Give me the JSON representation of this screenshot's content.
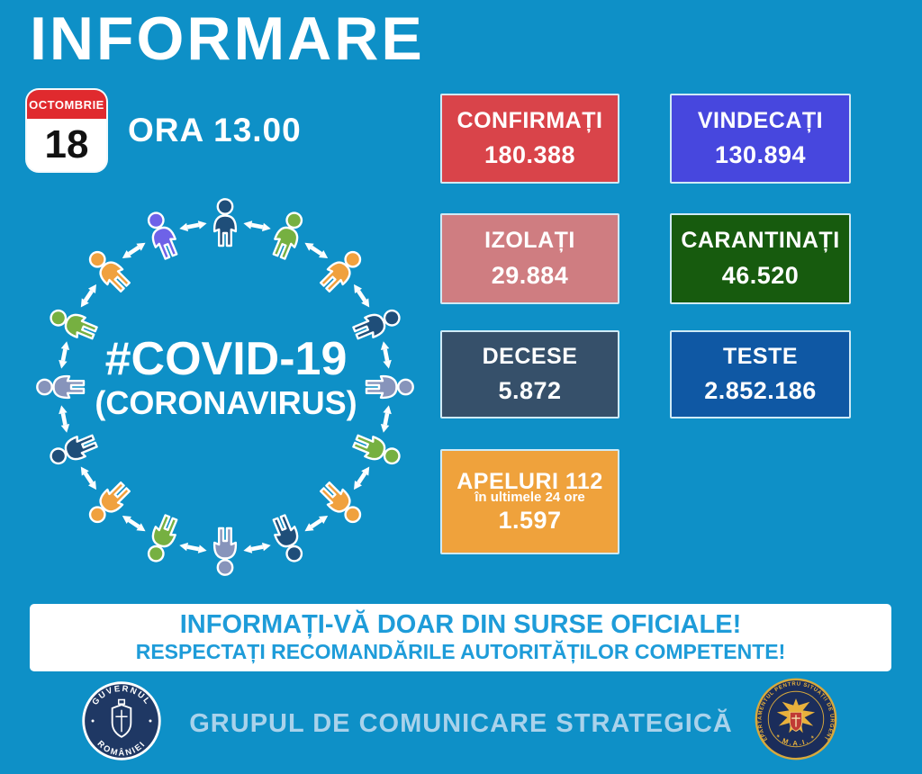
{
  "title": "INFORMARE",
  "date_badge": {
    "month": "OCTOMBRIE",
    "day": "18"
  },
  "time_label": "ORA 13.00",
  "graphic": {
    "center_text": "#COVID-19",
    "sub_text": "(CORONAVIRUS)",
    "arrow_color": "#FFFFFF",
    "icon_colors": [
      "#1F4E79",
      "#76B041",
      "#F0A13E",
      "#1F4E79",
      "#8794BB",
      "#76B041",
      "#F0A13E",
      "#1F4E79",
      "#8794BB",
      "#76B041",
      "#F0A13E",
      "#1F4E79",
      "#8794BB",
      "#76B041",
      "#F0A13E",
      "#6E62E8"
    ]
  },
  "stats": [
    {
      "id": "confirmati",
      "label": "CONFIRMAȚI",
      "value": "180.388",
      "color": "#D9444A"
    },
    {
      "id": "vindecati",
      "label": "VINDECAȚI",
      "value": "130.894",
      "color": "#4747DE"
    },
    {
      "id": "izolati",
      "label": "IZOLAȚI",
      "value": "29.884",
      "color": "#CF7D81"
    },
    {
      "id": "carantinati",
      "label": "CARANTINAȚI",
      "value": "46.520",
      "color": "#175B0E"
    },
    {
      "id": "decese",
      "label": "DECESE",
      "value": "5.872",
      "color": "#36506A"
    },
    {
      "id": "teste",
      "label": "TESTE",
      "value": "2.852.186",
      "color": "#0F58A4"
    },
    {
      "id": "apeluri",
      "label": "APELURI 112",
      "sublabel": "în ultimele 24 ore",
      "value": "1.597",
      "color": "#EFA23C"
    }
  ],
  "banner": {
    "line1": "INFORMAȚI-VĂ DOAR DIN SURSE OFICIALE!",
    "line2": "RESPECTAȚI RECOMANDĂRILE AUTORITĂȚILOR COMPETENTE!"
  },
  "footer": {
    "gov_seal_top": "GUVERNUL",
    "gov_seal_bottom": "ROMÂNIEI",
    "center_text": "GRUPUL DE COMUNICARE STRATEGICĂ",
    "dsu_ring_text": "DEPARTAMENTUL PENTRU SITUAȚII DE URGENȚĂ",
    "dsu_mai": "* M.A.I. *"
  },
  "colors": {
    "background": "#0E90C7",
    "banner_text": "#1E9CD9",
    "footer_text": "#A9D2EB",
    "calendar_red": "#E02A2E"
  }
}
